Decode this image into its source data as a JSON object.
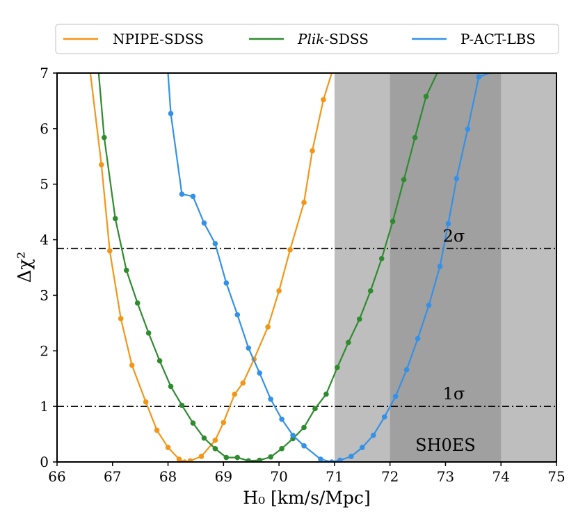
{
  "chart_data": {
    "type": "line",
    "xlabel": "H₀ [km/s/Mpc]",
    "ylabel": "Δχ²",
    "xlim": [
      66,
      75
    ],
    "ylim": [
      0,
      7
    ],
    "xticks": [
      66,
      67,
      68,
      69,
      70,
      71,
      72,
      73,
      74,
      75
    ],
    "yticks": [
      0,
      1,
      2,
      3,
      4,
      5,
      6,
      7
    ],
    "grid": false,
    "legend_placement": "top, outside plot",
    "series": [
      {
        "name": "NPIPE-SDSS",
        "color": "#f29618",
        "x": [
          66.6,
          66.8,
          66.95,
          67.15,
          67.35,
          67.6,
          67.8,
          68.0,
          68.2,
          68.3,
          68.4,
          68.6,
          68.85,
          69.0,
          69.2,
          69.35,
          69.55,
          69.8,
          70.0,
          70.2,
          70.45,
          70.6,
          70.8,
          70.95
        ],
        "y": [
          7.0,
          5.35,
          3.8,
          2.58,
          1.74,
          1.08,
          0.57,
          0.26,
          0.05,
          0.0,
          0.02,
          0.1,
          0.39,
          0.71,
          1.22,
          1.42,
          1.85,
          2.43,
          3.08,
          3.82,
          4.67,
          5.6,
          6.52,
          7.0
        ]
      },
      {
        "name": "Plik-SDSS",
        "name_italic": "Plik",
        "name_rest": "-SDSS",
        "color": "#2e8b2e",
        "x": [
          66.75,
          66.85,
          67.05,
          67.25,
          67.45,
          67.65,
          67.85,
          68.05,
          68.25,
          68.45,
          68.65,
          68.85,
          69.05,
          69.25,
          69.45,
          69.65,
          69.85,
          70.05,
          70.25,
          70.45,
          70.65,
          70.85,
          71.05,
          71.25,
          71.45,
          71.65,
          71.85,
          72.05,
          72.25,
          72.45,
          72.65,
          72.85
        ],
        "y": [
          7.0,
          5.84,
          4.38,
          3.45,
          2.86,
          2.32,
          1.82,
          1.36,
          1.02,
          0.7,
          0.43,
          0.24,
          0.08,
          0.08,
          0.02,
          0.03,
          0.09,
          0.24,
          0.42,
          0.62,
          0.96,
          1.22,
          1.7,
          2.15,
          2.57,
          3.08,
          3.66,
          4.33,
          5.08,
          5.84,
          6.58,
          7.0
        ]
      },
      {
        "name": "P-ACT-LBS",
        "color": "#3391e8",
        "x": [
          68.0,
          68.05,
          68.25,
          68.45,
          68.65,
          68.85,
          69.05,
          69.25,
          69.45,
          69.65,
          69.85,
          70.05,
          70.25,
          70.45,
          70.75,
          70.95,
          71.1,
          71.3,
          71.5,
          71.7,
          71.9,
          72.1,
          72.3,
          72.5,
          72.7,
          72.9,
          73.05,
          73.2,
          73.4,
          73.6,
          73.8,
          73.85
        ],
        "y": [
          7.0,
          6.27,
          4.82,
          4.78,
          4.3,
          3.93,
          3.22,
          2.65,
          2.05,
          1.6,
          1.13,
          0.77,
          0.48,
          0.29,
          0.05,
          0.0,
          0.03,
          0.1,
          0.26,
          0.48,
          0.81,
          1.18,
          1.66,
          2.22,
          2.82,
          3.52,
          4.29,
          5.1,
          5.99,
          6.93,
          7.0,
          7.0
        ]
      }
    ],
    "hlines": [
      {
        "y": 3.84,
        "label": "2σ",
        "label_x": 73.15,
        "style": "dash-dot"
      },
      {
        "y": 1.0,
        "label": "1σ",
        "label_x": 73.15,
        "style": "dash-dot"
      }
    ],
    "bands": [
      {
        "xmin": 71.0,
        "xmax": 75.0,
        "color": "#bebebe"
      },
      {
        "xmin": 72.0,
        "xmax": 74.0,
        "color": "#a0a0a0"
      }
    ],
    "band_label": {
      "text": "SH0ES",
      "x": 73.0,
      "y": 0.2
    }
  }
}
